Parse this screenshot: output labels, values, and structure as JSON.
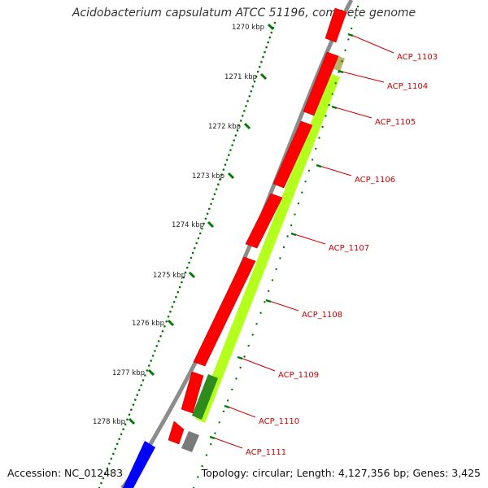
{
  "title": "Acidobacterium capsulatum ATCC 51196, complete genome",
  "footer": {
    "accession": "Accession: NC_012483",
    "summary": "Topology: circular; Length: 4,127,356 bp; Genes: 3,425"
  },
  "ticks": [
    "1270 kbp",
    "1271 kbp",
    "1272 kbp",
    "1273 kbp",
    "1274 kbp",
    "1275 kbp",
    "1276 kbp",
    "1277 kbp",
    "1278 kbp"
  ],
  "genes": [
    "ACP_1103",
    "ACP_1104",
    "ACP_1105",
    "ACP_1106",
    "ACP_1107",
    "ACP_1108",
    "ACP_1109",
    "ACP_1110",
    "ACP_1111"
  ],
  "colors": {
    "backbone": "#8c8c8c",
    "cds": "#ff0000",
    "label": "#cc0000",
    "tick": "#007a00",
    "feature_green": "#b5ff1e",
    "feature_darkgreen": "#2e8b1e",
    "feature_gray": "#7a7a7a",
    "feature_blue": "#0000ff"
  }
}
